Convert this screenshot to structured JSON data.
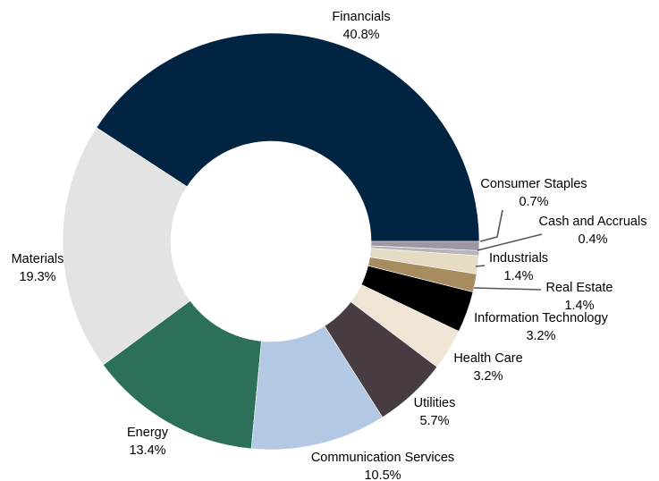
{
  "chart_data": {
    "type": "pie",
    "variant": "donut",
    "start_angle_deg": 0,
    "direction": "counterclockwise",
    "grid": false,
    "legend": "none",
    "slices": [
      {
        "label": "Financials",
        "value": 40.8,
        "value_label": "40.8%",
        "color": "#002442"
      },
      {
        "label": "Materials",
        "value": 19.3,
        "value_label": "19.3%",
        "color": "#e3e3e3"
      },
      {
        "label": "Energy",
        "value": 13.4,
        "value_label": "13.4%",
        "color": "#2d705a"
      },
      {
        "label": "Communication Services",
        "value": 10.5,
        "value_label": "10.5%",
        "color": "#b3c8e2"
      },
      {
        "label": "Utilities",
        "value": 5.7,
        "value_label": "5.7%",
        "color": "#463c42"
      },
      {
        "label": "Health Care",
        "value": 3.2,
        "value_label": "3.2%",
        "color": "#f0e5d5"
      },
      {
        "label": "Information Technology",
        "value": 3.2,
        "value_label": "3.2%",
        "color": "#000000"
      },
      {
        "label": "Real Estate",
        "value": 1.4,
        "value_label": "1.4%",
        "color": "#a78c60"
      },
      {
        "label": "Industrials",
        "value": 1.4,
        "value_label": "1.4%",
        "color": "#e6dcc4"
      },
      {
        "label": "Cash and Accruals",
        "value": 0.4,
        "value_label": "0.4%",
        "color": "#b8b4bc"
      },
      {
        "label": "Consumer Staples",
        "value": 0.7,
        "value_label": "0.7%",
        "color": "#9e97a3"
      }
    ]
  }
}
